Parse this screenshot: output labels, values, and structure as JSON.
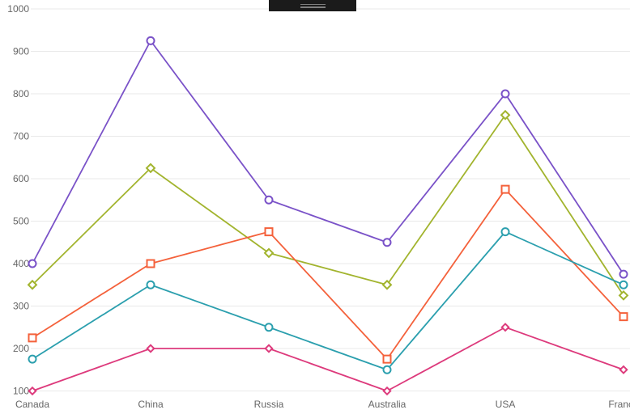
{
  "overlay_handle": {
    "bar_color": "#1b1b1b",
    "grip_color": "#7f7f7f"
  },
  "chart_data": {
    "type": "line",
    "title": "",
    "xlabel": "",
    "ylabel": "",
    "categories": [
      "Canada",
      "China",
      "Russia",
      "Australia",
      "USA",
      "France"
    ],
    "series": [
      {
        "name": "purple-series",
        "color": "#7a52c8",
        "marker": "circle",
        "values": [
          400,
          925,
          550,
          450,
          800,
          375
        ]
      },
      {
        "name": "olive-series",
        "color": "#a2b42e",
        "marker": "diamond",
        "values": [
          350,
          625,
          425,
          350,
          750,
          325
        ]
      },
      {
        "name": "orange-series",
        "color": "#f4613b",
        "marker": "square",
        "values": [
          225,
          400,
          475,
          175,
          575,
          275
        ]
      },
      {
        "name": "teal-series",
        "color": "#2b9fae",
        "marker": "circle",
        "values": [
          175,
          350,
          250,
          150,
          475,
          350
        ]
      },
      {
        "name": "pink-series",
        "color": "#dd3a7c",
        "marker": "diamond",
        "values": [
          100,
          200,
          200,
          100,
          250,
          150
        ]
      }
    ],
    "y_ticks": [
      100,
      200,
      300,
      400,
      500,
      600,
      700,
      800,
      900,
      1000
    ],
    "ylim": [
      100,
      1000
    ],
    "grid": "horizontal",
    "legend": "none",
    "axis_label_color": "#666666",
    "gridline_color": "#e9e9e9",
    "background": "#ffffff"
  }
}
